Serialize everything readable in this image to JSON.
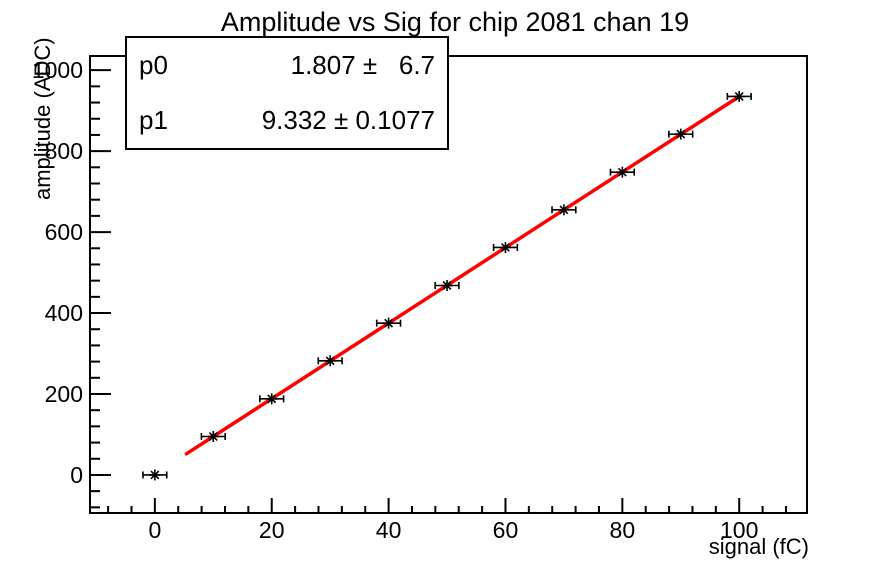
{
  "title": "Amplitude vs Sig for chip 2081 chan 19",
  "stats_box": {
    "rows": [
      {
        "label": "p0",
        "value": "1.807 ±   6.7"
      },
      {
        "label": "p1",
        "value": "9.332 ± 0.1077"
      }
    ]
  },
  "chart_data": {
    "type": "scatter",
    "title": "Amplitude vs Sig for chip 2081 chan 19",
    "xlabel": "signal (fC)",
    "ylabel": "amplitude (ADC)",
    "x": [
      0,
      10,
      20,
      30,
      40,
      50,
      60,
      70,
      80,
      90,
      100
    ],
    "y": [
      0,
      95,
      188,
      282,
      375,
      468,
      562,
      655,
      748,
      842,
      935
    ],
    "x_error": 2,
    "marker": "asterisk",
    "marker_color": "#000000",
    "fit_line": {
      "p0": 1.807,
      "p0_err": 6.7,
      "p1": 9.332,
      "p1_err": 0.1077,
      "x_range": [
        5.4,
        100
      ],
      "color": "#ff0000"
    },
    "xlim": [
      -11.1,
      111.6
    ],
    "ylim": [
      -94,
      1035
    ],
    "x_major_ticks": [
      0,
      20,
      40,
      60,
      80,
      100
    ],
    "y_major_ticks": [
      0,
      200,
      400,
      600,
      800,
      1000
    ],
    "x_minor_step": 4,
    "y_minor_step": 40,
    "grid": false,
    "legend": "none",
    "axis_color": "#000000",
    "background": "#ffffff"
  }
}
